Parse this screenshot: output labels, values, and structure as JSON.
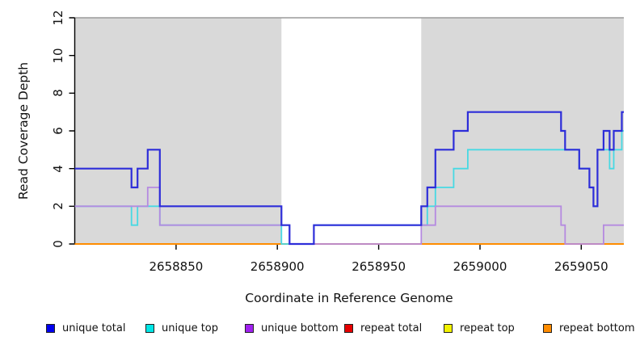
{
  "chart_data": {
    "type": "line",
    "subtype": "step-coverage-plot",
    "xlabel": "Coordinate in Reference Genome",
    "ylabel": "Read Coverage Depth",
    "xlim": [
      2658800,
      2659071
    ],
    "ylim": [
      0,
      12
    ],
    "grid": false,
    "x_ticks": [
      2658850,
      2658900,
      2658950,
      2659000,
      2659050
    ],
    "y_ticks": [
      0,
      2,
      4,
      6,
      8,
      10,
      12
    ],
    "shaded_regions": [
      {
        "from": 2658800,
        "to": 2658902,
        "color": "#d9d9d9"
      },
      {
        "from": 2658971,
        "to": 2659071,
        "color": "#d9d9d9"
      }
    ],
    "hline": {
      "y": 12,
      "color": "#9a9a9a"
    },
    "axis_color": "#000000",
    "legend_position": "bottom",
    "legend": [
      {
        "label": "unique total",
        "color": "#0000ee"
      },
      {
        "label": "unique top",
        "color": "#00e6e6"
      },
      {
        "label": "unique bottom",
        "color": "#a020f0"
      },
      {
        "label": "repeat total",
        "color": "#e60000"
      },
      {
        "label": "repeat top",
        "color": "#f2f200"
      },
      {
        "label": "repeat bottom",
        "color": "#ff8c00"
      }
    ],
    "series": [
      {
        "name": "repeat total",
        "color": "#e60000",
        "steps": [
          [
            2658800,
            0
          ]
        ]
      },
      {
        "name": "repeat top",
        "color": "#f2f200",
        "steps": [
          [
            2658800,
            0
          ]
        ]
      },
      {
        "name": "repeat bottom",
        "color": "#ff8c00",
        "steps": [
          [
            2658800,
            0
          ]
        ]
      },
      {
        "name": "unique top",
        "color": "#47d9e3",
        "steps": [
          [
            2658800,
            2
          ],
          [
            2658828,
            1
          ],
          [
            2658831,
            2
          ],
          [
            2658842,
            1
          ],
          [
            2658902,
            0
          ],
          [
            2658918,
            1
          ],
          [
            2658974,
            2
          ],
          [
            2658978,
            3
          ],
          [
            2658987,
            4
          ],
          [
            2658994,
            5
          ],
          [
            2659049,
            4
          ],
          [
            2659054,
            3
          ],
          [
            2659056,
            2
          ],
          [
            2659058,
            5
          ],
          [
            2659064,
            4
          ],
          [
            2659066,
            5
          ],
          [
            2659070,
            6
          ]
        ]
      },
      {
        "name": "unique bottom",
        "color": "#b58ae0",
        "steps": [
          [
            2658800,
            2
          ],
          [
            2658836,
            3
          ],
          [
            2658842,
            1
          ],
          [
            2658906,
            0
          ],
          [
            2658971,
            1
          ],
          [
            2658978,
            2
          ],
          [
            2659040,
            1
          ],
          [
            2659042,
            0
          ],
          [
            2659061,
            1
          ]
        ]
      },
      {
        "name": "unique total",
        "color": "#2d2dd9",
        "steps": [
          [
            2658800,
            4
          ],
          [
            2658828,
            3
          ],
          [
            2658831,
            4
          ],
          [
            2658836,
            5
          ],
          [
            2658842,
            2
          ],
          [
            2658902,
            1
          ],
          [
            2658906,
            0
          ],
          [
            2658918,
            1
          ],
          [
            2658971,
            2
          ],
          [
            2658974,
            3
          ],
          [
            2658978,
            5
          ],
          [
            2658987,
            6
          ],
          [
            2658994,
            7
          ],
          [
            2659040,
            6
          ],
          [
            2659042,
            5
          ],
          [
            2659049,
            4
          ],
          [
            2659054,
            3
          ],
          [
            2659056,
            2
          ],
          [
            2659058,
            5
          ],
          [
            2659061,
            6
          ],
          [
            2659064,
            5
          ],
          [
            2659066,
            6
          ],
          [
            2659070,
            7
          ]
        ]
      }
    ]
  }
}
